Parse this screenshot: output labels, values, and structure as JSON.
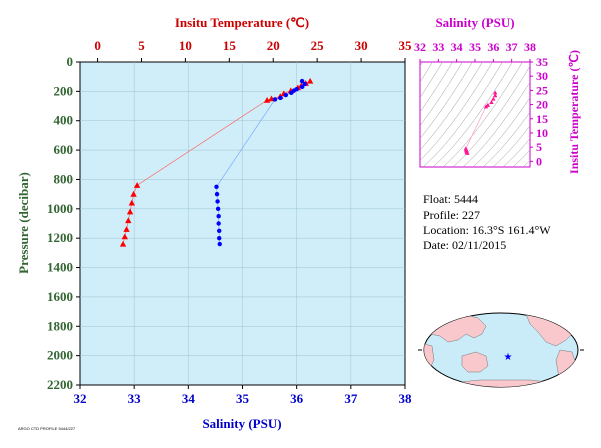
{
  "chart_data": [
    {
      "type": "scatter",
      "top_axis_label": "Insitu Temperature (℃)",
      "top_ticks": [
        0,
        5,
        10,
        15,
        20,
        25,
        30,
        35
      ],
      "top_range": [
        -2,
        35
      ],
      "bottom_axis_label": "Salinity (PSU)",
      "bottom_ticks": [
        32,
        33,
        34,
        35,
        36,
        37,
        38
      ],
      "bottom_range": [
        32,
        38
      ],
      "ylabel": "Pressure (decibar)",
      "y_ticks": [
        0,
        200,
        400,
        600,
        800,
        1000,
        1200,
        1400,
        1600,
        1800,
        2000,
        2200
      ],
      "y_range": [
        0,
        2200
      ],
      "y_inverted": true,
      "plot_background": "#cfeefa",
      "series": [
        {
          "kind": "temperature",
          "marker": "triangle",
          "color": "#ff0000",
          "points": [
            [
              24.2,
              130
            ],
            [
              23.7,
              145
            ],
            [
              23.2,
              160
            ],
            [
              22.8,
              175
            ],
            [
              22.0,
              195
            ],
            [
              21.2,
              215
            ],
            [
              20.8,
              235
            ],
            [
              19.8,
              250
            ],
            [
              19.3,
              260
            ],
            [
              4.5,
              840
            ],
            [
              4.1,
              900
            ],
            [
              3.9,
              960
            ],
            [
              3.7,
              1020
            ],
            [
              3.5,
              1080
            ],
            [
              3.3,
              1140
            ],
            [
              3.1,
              1190
            ],
            [
              2.9,
              1240
            ]
          ]
        },
        {
          "kind": "salinity",
          "marker": "circle",
          "color": "#0000ff",
          "points": [
            [
              36.1,
              130
            ],
            [
              36.15,
              150
            ],
            [
              36.1,
              170
            ],
            [
              36.0,
              185
            ],
            [
              35.95,
              195
            ],
            [
              35.9,
              210
            ],
            [
              35.8,
              225
            ],
            [
              35.7,
              245
            ],
            [
              35.6,
              255
            ],
            [
              34.52,
              850
            ],
            [
              34.53,
              900
            ],
            [
              34.54,
              950
            ],
            [
              34.55,
              1000
            ],
            [
              34.56,
              1050
            ],
            [
              34.56,
              1100
            ],
            [
              34.57,
              1150
            ],
            [
              34.57,
              1200
            ],
            [
              34.58,
              1240
            ]
          ]
        }
      ]
    },
    {
      "type": "scatter",
      "title": "Salinity (PSU)",
      "x_ticks": [
        32,
        33,
        34,
        35,
        36,
        37,
        38
      ],
      "x_range": [
        32,
        38
      ],
      "ylabel": "Insitu Temperature (℃)",
      "y_ticks": [
        0,
        5,
        10,
        15,
        20,
        25,
        30,
        35
      ],
      "y_range": [
        -2,
        35
      ],
      "series": [
        {
          "marker": "triangle",
          "color": "#ff1493",
          "points": [
            [
              36.1,
              24.2
            ],
            [
              36.1,
              23.2
            ],
            [
              36.0,
              22.0
            ],
            [
              35.9,
              20.8
            ],
            [
              35.7,
              19.8
            ],
            [
              35.6,
              19.3
            ],
            [
              34.5,
              4.5
            ],
            [
              34.52,
              4.0
            ],
            [
              34.54,
              3.6
            ],
            [
              34.56,
              3.2
            ],
            [
              34.58,
              2.9
            ]
          ]
        }
      ]
    }
  ],
  "info": {
    "float": "Float:  5444",
    "profile": "Profile:  227",
    "location": "Location:  16.3°S  161.4°W",
    "date": "Date:  02/11/2015"
  },
  "map": {
    "marker_color": "#0000ff",
    "land_color": "#f8c8cc",
    "ocean_color": "#c9ecf8"
  },
  "footer": "ARGO CTD PROFILE 5444/227"
}
